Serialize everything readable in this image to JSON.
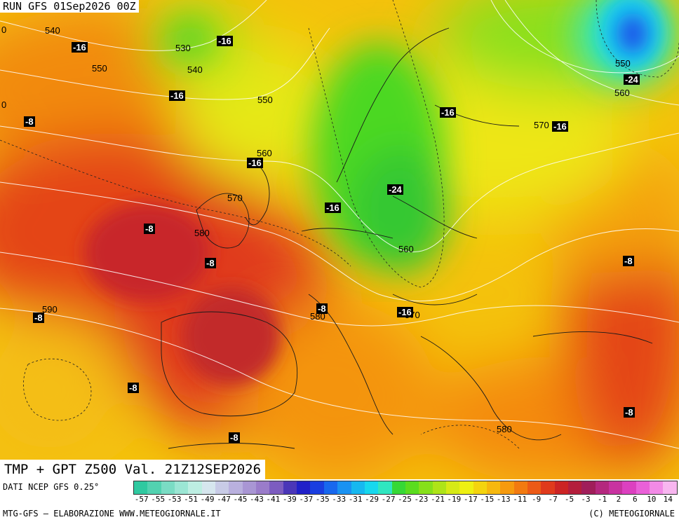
{
  "header": {
    "run": "RUN GFS 01Sep2026 00Z"
  },
  "product": {
    "title": "TMP + GPT Z500 Val. 21Z12SEP2026"
  },
  "footer": {
    "source": "DATI NCEP GFS 0.25°",
    "credit_left": "MTG-GFS – ELABORAZIONE WWW.METEOGIORNALE.IT",
    "credit_right": "(C) METEOGIORNALE"
  },
  "legend": {
    "ticks": [
      "-57",
      "-55",
      "-53",
      "-51",
      "-49",
      "-47",
      "-45",
      "-43",
      "-41",
      "-39",
      "-37",
      "-35",
      "-33",
      "-31",
      "-29",
      "-27",
      "-25",
      "-23",
      "-21",
      "-19",
      "-17",
      "-15",
      "-13",
      "-11",
      "-9",
      "-7",
      "-5",
      "-3",
      "-1",
      "2",
      "6",
      "10",
      "14"
    ],
    "colors": [
      "#2fc9a0",
      "#52d2b0",
      "#7adcc4",
      "#9be6d4",
      "#bdeee2",
      "#d6e6ee",
      "#c8cbe6",
      "#b9b0de",
      "#a996d4",
      "#9a7cca",
      "#7c5cc0",
      "#4a36b8",
      "#2020c8",
      "#1a3ee0",
      "#1868ee",
      "#1a92f2",
      "#16b8f0",
      "#16d8ee",
      "#30e6c0",
      "#36d836",
      "#5adc1e",
      "#86e01a",
      "#aee418",
      "#d6ea16",
      "#eef012",
      "#f4d40e",
      "#f6b80e",
      "#f69a0e",
      "#f27a10",
      "#ec5a16",
      "#e03a1c",
      "#cc2424",
      "#b41e3c",
      "#a01e5a",
      "#b4287e",
      "#c832a0",
      "#dc40c0",
      "#ea60d8",
      "#f28ae6",
      "#f8b6f0"
    ]
  },
  "gpt_labels": [
    {
      "text": "540"
    },
    {
      "text": "530"
    },
    {
      "text": "540"
    },
    {
      "text": "550"
    },
    {
      "text": "550"
    },
    {
      "text": "560"
    },
    {
      "text": "570"
    },
    {
      "text": "580"
    },
    {
      "text": "590"
    },
    {
      "text": "580"
    },
    {
      "text": "560"
    },
    {
      "text": "570"
    },
    {
      "text": "570"
    },
    {
      "text": "550"
    },
    {
      "text": "560"
    },
    {
      "text": "580"
    },
    {
      "text": "0"
    },
    {
      "text": "0"
    }
  ],
  "tmp_labels": [
    {
      "text": "-16"
    },
    {
      "text": "-16"
    },
    {
      "text": "-16"
    },
    {
      "text": "-8"
    },
    {
      "text": "-16"
    },
    {
      "text": "-8"
    },
    {
      "text": "-8"
    },
    {
      "text": "-8"
    },
    {
      "text": "-16"
    },
    {
      "text": "-24"
    },
    {
      "text": "-16"
    },
    {
      "text": "-16"
    },
    {
      "text": "-24"
    },
    {
      "text": "-8"
    },
    {
      "text": "-8"
    },
    {
      "text": "-8"
    },
    {
      "text": "-16"
    },
    {
      "text": "-8"
    },
    {
      "text": "-8"
    }
  ]
}
